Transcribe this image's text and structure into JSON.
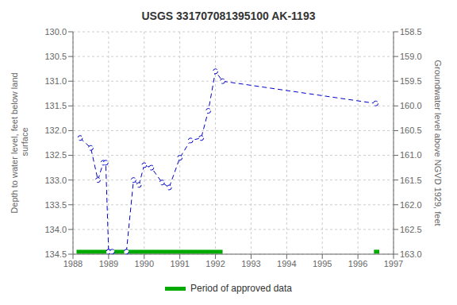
{
  "chart_data": {
    "type": "line",
    "title": "USGS 331707081395100 AK-1193",
    "y_label": "Depth to water level, feet below land\n surface",
    "y2_label": "Groundwater level above NGVD 1929, feet",
    "xlim": [
      1988,
      1997
    ],
    "xticks": [
      1988,
      1989,
      1990,
      1991,
      1992,
      1993,
      1994,
      1995,
      1996,
      1997
    ],
    "ylim": [
      134.5,
      130.0
    ],
    "yticks": [
      {
        "value": 130.0,
        "label": "130.0"
      },
      130.5,
      {
        "value": 131.0,
        "label": "131.0"
      },
      131.5,
      {
        "value": 132.0,
        "label": "132.0"
      },
      132.5,
      {
        "value": 133.0,
        "label": "133.0"
      },
      133.5,
      {
        "value": 134.0,
        "label": "134.0"
      },
      134.5
    ],
    "y2lim": [
      163.0,
      158.5
    ],
    "y2ticks": [
      158.5,
      {
        "value": 159.0,
        "label": "159.0"
      },
      159.5,
      {
        "value": 160.0,
        "label": "160.0"
      },
      160.5,
      {
        "value": 161.0,
        "label": "161.0"
      },
      161.5,
      {
        "value": 162.0,
        "label": "162.0"
      },
      162.5,
      {
        "value": 163.0,
        "label": "163.0"
      }
    ],
    "grid": true,
    "series": [
      {
        "type": "line",
        "color": "#0000cc",
        "line_style": "dashed",
        "marker": "open_circle",
        "x": [
          1988.2,
          1988.5,
          1988.7,
          1988.85,
          1988.92,
          1989.0,
          1989.1,
          1989.5,
          1989.7,
          1989.85,
          1990.0,
          1990.2,
          1990.5,
          1990.7,
          1991.0,
          1991.3,
          1991.6,
          1991.8,
          1992.0,
          1992.2,
          1996.5
        ],
        "values": [
          132.15,
          132.35,
          133.0,
          132.65,
          132.65,
          134.45,
          134.45,
          134.45,
          133.0,
          133.1,
          132.7,
          132.75,
          133.05,
          133.15,
          132.55,
          132.2,
          132.15,
          131.6,
          130.8,
          131.0,
          131.45
        ]
      },
      {
        "type": "period_bars",
        "name": "Period of approved data",
        "color": "#00aa00",
        "line_style": "solid",
        "periods": [
          [
            1988.1,
            1992.2
          ],
          [
            1996.45,
            1996.6
          ]
        ],
        "value": 134.45
      }
    ]
  }
}
